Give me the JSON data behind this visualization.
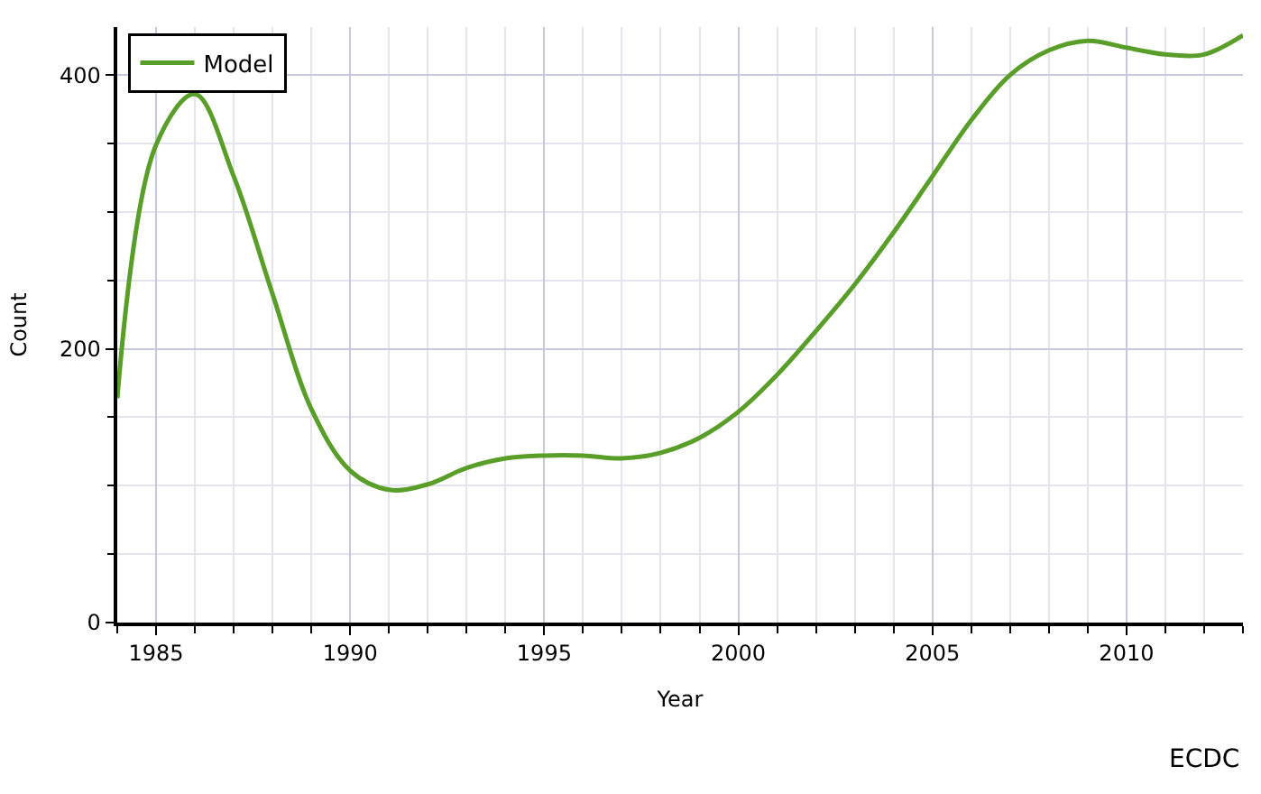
{
  "chart_data": {
    "type": "line",
    "xlabel": "Year",
    "ylabel": "Count",
    "x": [
      1984,
      1985,
      1986,
      1987,
      1988,
      1989,
      1990,
      1991,
      1992,
      1993,
      1994,
      1995,
      1996,
      1997,
      1998,
      1999,
      2000,
      2001,
      2002,
      2003,
      2004,
      2005,
      2006,
      2007,
      2008,
      2009,
      2010,
      2011,
      2012,
      2013
    ],
    "series": [
      {
        "name": "Model",
        "color": "#5a9e2a",
        "values": [
          164,
          349,
          386,
          326,
          240,
          156,
          111,
          97,
          101,
          113,
          120,
          122,
          122,
          120,
          124,
          135,
          154,
          181,
          213,
          247,
          285,
          326,
          367,
          400,
          418,
          425,
          420,
          415,
          415,
          429
        ]
      }
    ],
    "xlim": [
      1984,
      2013
    ],
    "xticks": [
      1985,
      1990,
      1995,
      2000,
      2005,
      2010
    ],
    "ylim": [
      0,
      435
    ],
    "yticks": [
      0,
      200,
      400
    ],
    "grid": true,
    "legend": "top left",
    "marker": "none",
    "line_style": "solid",
    "annotations": [
      "ECDC"
    ]
  }
}
